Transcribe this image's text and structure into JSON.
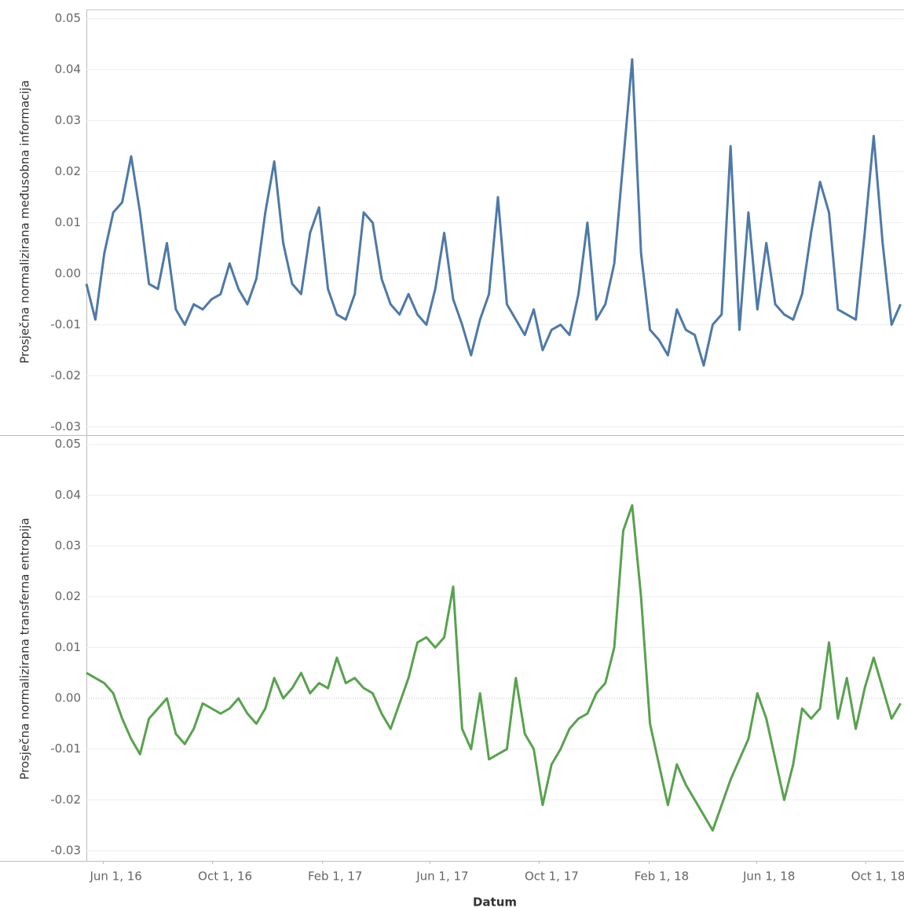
{
  "chart_data": [
    {
      "type": "line",
      "ylabel": "Prosječna normalizirana međusobna informacija",
      "color": "#4e79a7",
      "xlim": [
        "2016-05-13",
        "2018-11-12"
      ],
      "ylim": [
        -0.0315,
        0.0518
      ],
      "yticks": [
        0.05,
        0.04,
        0.03,
        0.02,
        0.01,
        {
          "value": 0,
          "label": "0.00"
        },
        -0.01,
        -0.02,
        -0.03
      ],
      "x": [
        "2016-05-13",
        "2016-05-23",
        "2016-06-02",
        "2016-06-12",
        "2016-06-22",
        "2016-07-02",
        "2016-07-12",
        "2016-07-22",
        "2016-08-01",
        "2016-08-11",
        "2016-08-21",
        "2016-08-31",
        "2016-09-10",
        "2016-09-20",
        "2016-09-30",
        "2016-10-10",
        "2016-10-20",
        "2016-10-30",
        "2016-11-09",
        "2016-11-19",
        "2016-11-29",
        "2016-12-09",
        "2016-12-19",
        "2016-12-29",
        "2017-01-08",
        "2017-01-18",
        "2017-01-28",
        "2017-02-07",
        "2017-02-17",
        "2017-02-27",
        "2017-03-09",
        "2017-03-19",
        "2017-03-29",
        "2017-04-08",
        "2017-04-18",
        "2017-04-28",
        "2017-05-08",
        "2017-05-18",
        "2017-05-28",
        "2017-06-07",
        "2017-06-17",
        "2017-06-27",
        "2017-07-07",
        "2017-07-17",
        "2017-07-27",
        "2017-08-06",
        "2017-08-16",
        "2017-08-26",
        "2017-09-05",
        "2017-09-15",
        "2017-09-25",
        "2017-10-05",
        "2017-10-15",
        "2017-10-25",
        "2017-11-04",
        "2017-11-14",
        "2017-11-24",
        "2017-12-04",
        "2017-12-14",
        "2017-12-24",
        "2018-01-03",
        "2018-01-13",
        "2018-01-23",
        "2018-02-02",
        "2018-02-12",
        "2018-02-22",
        "2018-03-04",
        "2018-03-14",
        "2018-03-24",
        "2018-04-03",
        "2018-04-13",
        "2018-04-23",
        "2018-05-03",
        "2018-05-13",
        "2018-05-23",
        "2018-06-02",
        "2018-06-12",
        "2018-06-22",
        "2018-07-02",
        "2018-07-12",
        "2018-07-22",
        "2018-08-01",
        "2018-08-11",
        "2018-08-21",
        "2018-08-31",
        "2018-09-10",
        "2018-09-20",
        "2018-09-30",
        "2018-10-10",
        "2018-10-20",
        "2018-10-30",
        "2018-11-09"
      ],
      "values": [
        -0.002,
        -0.009,
        0.004,
        0.012,
        0.014,
        0.023,
        0.012,
        -0.002,
        -0.003,
        0.006,
        -0.007,
        -0.01,
        -0.006,
        -0.007,
        -0.005,
        -0.004,
        0.002,
        -0.003,
        -0.006,
        -0.001,
        0.012,
        0.022,
        0.006,
        -0.002,
        -0.004,
        0.008,
        0.013,
        -0.003,
        -0.008,
        -0.009,
        -0.004,
        0.012,
        0.01,
        -0.001,
        -0.006,
        -0.008,
        -0.004,
        -0.008,
        -0.01,
        -0.003,
        0.008,
        -0.005,
        -0.01,
        -0.016,
        -0.009,
        -0.004,
        0.015,
        -0.006,
        -0.009,
        -0.012,
        -0.007,
        -0.015,
        -0.011,
        -0.01,
        -0.012,
        -0.004,
        0.01,
        -0.009,
        -0.006,
        0.002,
        0.022,
        0.042,
        0.004,
        -0.011,
        -0.013,
        -0.016,
        -0.007,
        -0.011,
        -0.012,
        -0.018,
        -0.01,
        -0.008,
        0.025,
        -0.011,
        0.012,
        -0.007,
        0.006,
        -0.006,
        -0.008,
        -0.009,
        -0.004,
        0.008,
        0.018,
        0.012,
        -0.007,
        -0.008,
        -0.009,
        0.008,
        0.027,
        0.006,
        -0.01,
        -0.006
      ]
    },
    {
      "type": "line",
      "ylabel": "Prosječna normalizirana transferna entropija",
      "xlabel": "Datum",
      "color": "#59a14f",
      "xlim": [
        "2016-05-13",
        "2018-11-12"
      ],
      "xticks": [
        {
          "value": "2016-06-01",
          "label": "Jun 1, 16"
        },
        {
          "value": "2016-10-01",
          "label": "Oct 1, 16"
        },
        {
          "value": "2017-02-01",
          "label": "Feb 1, 17"
        },
        {
          "value": "2017-06-01",
          "label": "Jun 1, 17"
        },
        {
          "value": "2017-10-01",
          "label": "Oct 1, 17"
        },
        {
          "value": "2018-02-01",
          "label": "Feb 1, 18"
        },
        {
          "value": "2018-06-01",
          "label": "Jun 1, 18"
        },
        {
          "value": "2018-10-01",
          "label": "Oct 1, 18"
        }
      ],
      "ylim": [
        -0.032,
        0.0515
      ],
      "yticks": [
        0.05,
        0.04,
        0.03,
        0.02,
        0.01,
        {
          "value": 0,
          "label": "0.00"
        },
        -0.01,
        -0.02,
        -0.03
      ],
      "x": [
        "2016-05-13",
        "2016-05-23",
        "2016-06-02",
        "2016-06-12",
        "2016-06-22",
        "2016-07-02",
        "2016-07-12",
        "2016-07-22",
        "2016-08-01",
        "2016-08-11",
        "2016-08-21",
        "2016-08-31",
        "2016-09-10",
        "2016-09-20",
        "2016-09-30",
        "2016-10-10",
        "2016-10-20",
        "2016-10-30",
        "2016-11-09",
        "2016-11-19",
        "2016-11-29",
        "2016-12-09",
        "2016-12-19",
        "2016-12-29",
        "2017-01-08",
        "2017-01-18",
        "2017-01-28",
        "2017-02-07",
        "2017-02-17",
        "2017-02-27",
        "2017-03-09",
        "2017-03-19",
        "2017-03-29",
        "2017-04-08",
        "2017-04-18",
        "2017-04-28",
        "2017-05-08",
        "2017-05-18",
        "2017-05-28",
        "2017-06-07",
        "2017-06-17",
        "2017-06-27",
        "2017-07-07",
        "2017-07-17",
        "2017-07-27",
        "2017-08-06",
        "2017-08-16",
        "2017-08-26",
        "2017-09-05",
        "2017-09-15",
        "2017-09-25",
        "2017-10-05",
        "2017-10-15",
        "2017-10-25",
        "2017-11-04",
        "2017-11-14",
        "2017-11-24",
        "2017-12-04",
        "2017-12-14",
        "2017-12-24",
        "2018-01-03",
        "2018-01-13",
        "2018-01-23",
        "2018-02-02",
        "2018-02-12",
        "2018-02-22",
        "2018-03-04",
        "2018-03-14",
        "2018-03-24",
        "2018-04-03",
        "2018-04-13",
        "2018-04-23",
        "2018-05-03",
        "2018-05-13",
        "2018-05-23",
        "2018-06-02",
        "2018-06-12",
        "2018-06-22",
        "2018-07-02",
        "2018-07-12",
        "2018-07-22",
        "2018-08-01",
        "2018-08-11",
        "2018-08-21",
        "2018-08-31",
        "2018-09-10",
        "2018-09-20",
        "2018-09-30",
        "2018-10-10",
        "2018-10-20",
        "2018-10-30",
        "2018-11-09"
      ],
      "values": [
        0.005,
        0.004,
        0.003,
        0.001,
        -0.004,
        -0.008,
        -0.011,
        -0.004,
        -0.002,
        0.0,
        -0.007,
        -0.009,
        -0.006,
        -0.001,
        -0.002,
        -0.003,
        -0.002,
        0.0,
        -0.003,
        -0.005,
        -0.002,
        0.004,
        0.0,
        0.002,
        0.005,
        0.001,
        0.003,
        0.002,
        0.008,
        0.003,
        0.004,
        0.002,
        0.001,
        -0.003,
        -0.006,
        -0.001,
        0.004,
        0.011,
        0.012,
        0.01,
        0.012,
        0.022,
        -0.006,
        -0.01,
        0.001,
        -0.012,
        -0.011,
        -0.01,
        0.004,
        -0.007,
        -0.01,
        -0.021,
        -0.013,
        -0.01,
        -0.006,
        -0.004,
        -0.003,
        0.001,
        0.003,
        0.01,
        0.033,
        0.038,
        0.02,
        -0.005,
        -0.013,
        -0.021,
        -0.013,
        -0.017,
        -0.02,
        -0.023,
        -0.026,
        -0.021,
        -0.016,
        -0.012,
        -0.008,
        0.001,
        -0.004,
        -0.012,
        -0.02,
        -0.013,
        -0.002,
        -0.004,
        -0.002,
        0.011,
        -0.004,
        0.004,
        -0.006,
        0.002,
        0.008,
        0.002,
        -0.004,
        -0.001
      ]
    }
  ]
}
